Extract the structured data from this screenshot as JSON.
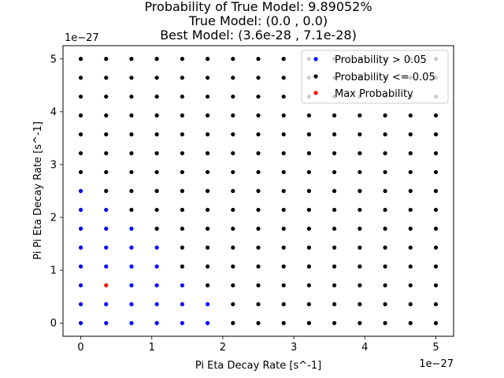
{
  "chart_data": {
    "type": "scatter",
    "title_lines": [
      "Probability of True Model: 9.89052%",
      "True Model: (0.0 , 0.0)",
      "Best Model: (3.6e-28 , 7.1e-28)"
    ],
    "xlabel": "Pi Eta Decay Rate [s^-1]",
    "ylabel": "Pi Pi Eta Decay Rate [s^-1]",
    "x_offset_label": "1e−27",
    "y_offset_label": "1e−27",
    "x_unit_scale": 1e-27,
    "y_unit_scale": 1e-27,
    "xlim": [
      -0.25,
      5.25
    ],
    "ylim": [
      -0.25,
      5.25
    ],
    "x_ticks": [
      0,
      1,
      2,
      3,
      4,
      5
    ],
    "y_ticks": [
      0,
      1,
      2,
      3,
      4,
      5
    ],
    "x_tick_labels": [
      "0",
      "1",
      "2",
      "3",
      "4",
      "5"
    ],
    "y_tick_labels": [
      "0",
      "1",
      "2",
      "3",
      "4",
      "5"
    ],
    "grid": false,
    "legend_placement": "top-right",
    "grid_values": [
      0,
      0.357,
      0.714,
      1.071,
      1.429,
      1.786,
      2.143,
      2.5,
      2.857,
      3.214,
      3.571,
      3.929,
      4.286,
      4.643,
      5.0
    ],
    "series": [
      {
        "name": "Probability > 0.05",
        "color": "#0000ff",
        "points": [
          [
            0,
            0
          ],
          [
            0.357,
            0
          ],
          [
            0.714,
            0
          ],
          [
            1.071,
            0
          ],
          [
            1.429,
            0
          ],
          [
            1.786,
            0
          ],
          [
            0,
            0.357
          ],
          [
            0.357,
            0.357
          ],
          [
            0.714,
            0.357
          ],
          [
            1.071,
            0.357
          ],
          [
            1.429,
            0.357
          ],
          [
            1.786,
            0.357
          ],
          [
            0,
            0.714
          ],
          [
            0.714,
            0.714
          ],
          [
            1.071,
            0.714
          ],
          [
            1.429,
            0.714
          ],
          [
            0,
            1.071
          ],
          [
            0.357,
            1.071
          ],
          [
            0.714,
            1.071
          ],
          [
            1.071,
            1.071
          ],
          [
            0,
            1.429
          ],
          [
            0.357,
            1.429
          ],
          [
            0.714,
            1.429
          ],
          [
            1.071,
            1.429
          ],
          [
            0,
            1.786
          ],
          [
            0.357,
            1.786
          ],
          [
            0.714,
            1.786
          ],
          [
            0,
            2.143
          ],
          [
            0.357,
            2.143
          ],
          [
            0,
            2.5
          ]
        ]
      },
      {
        "name": "Probability <= 0.05",
        "color": "#000000",
        "points": "all remaining grid points"
      },
      {
        "name": "Max Probability",
        "color": "#ff0000",
        "points": [
          [
            0.357,
            0.714
          ]
        ]
      }
    ]
  }
}
